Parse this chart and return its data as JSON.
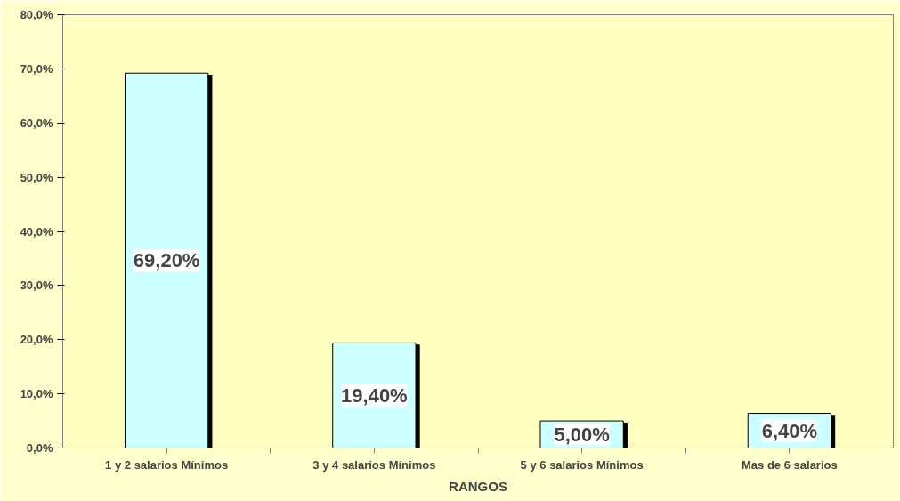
{
  "chart_data": {
    "type": "bar",
    "xlabel": "RANGOS",
    "categories": [
      "1 y 2 salarios Mínimos",
      "3 y 4 salarios Mínimos",
      "5 y 6 salarios Mínimos",
      "Mas de 6 salarios"
    ],
    "values": [
      69.2,
      19.4,
      5.0,
      6.4
    ],
    "value_labels": [
      "69,20%",
      "19,40%",
      "5,00%",
      "6,40%"
    ],
    "color": "#ccffff",
    "ylim": [
      0,
      80
    ],
    "yticks": [
      {
        "value": 0,
        "label": "0,0%"
      },
      {
        "value": 10,
        "label": "10,0%"
      },
      {
        "value": 20,
        "label": "20,0%"
      },
      {
        "value": 30,
        "label": "30,0%"
      },
      {
        "value": 40,
        "label": "40,0%"
      },
      {
        "value": 50,
        "label": "50,0%"
      },
      {
        "value": 60,
        "label": "60,0%"
      },
      {
        "value": 70,
        "label": "70,0%"
      },
      {
        "value": 80,
        "label": "80,0%"
      }
    ],
    "grid": false
  }
}
